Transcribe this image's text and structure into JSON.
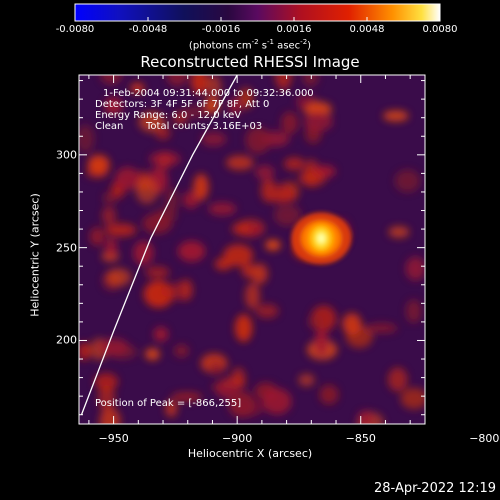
{
  "colorbar": {
    "ticks": [
      "-0.0080",
      "-0.0048",
      "-0.0016",
      "0.0016",
      "0.0048",
      "0.0080"
    ],
    "units_main": "(photons cm",
    "units_sup1": "-2",
    "units_mid": " s",
    "units_sup2": "-1",
    "units_mid2": " asec",
    "units_sup3": "-2",
    "units_end": ")",
    "colormap": "black-purple-red-orange-yellow-white"
  },
  "title": "Reconstructed RHESSI Image",
  "info": {
    "line1": "1-Feb-2004 09:31:44.000 to 09:32:36.000",
    "line2": "Detectors: 3F 4F 5F 6F 7F 8F, Att 0",
    "line3": "Energy Range: 6.0 - 12.0 keV",
    "line4_a": "Clean",
    "line4_b": "Total counts: 3.16E+03"
  },
  "peak_label": "Position of Peak = [-866,255]",
  "timestamp": "28-Apr-2022 12:19",
  "chart_data": {
    "type": "heatmap",
    "title": "Reconstructed RHESSI Image",
    "xlabel": "Heliocentric X (arcsec)",
    "ylabel": "Heliocentric Y (arcsec)",
    "xlim": [
      -964,
      -824
    ],
    "ylim": [
      155,
      343
    ],
    "x_ticks": [
      -950,
      -900,
      -850,
      -800
    ],
    "x_tick_labels": [
      "−950",
      "−900",
      "−850",
      "−800"
    ],
    "y_ticks": [
      200,
      250,
      300
    ],
    "y_tick_labels": [
      "200",
      "250",
      "300"
    ],
    "value_range": [
      -0.008,
      0.008
    ],
    "peak": {
      "x": -866,
      "y": 255
    },
    "limb_curve": [
      [
        -963,
        160
      ],
      [
        -950,
        205
      ],
      [
        -935,
        255
      ],
      [
        -918,
        300
      ],
      [
        -900,
        343
      ]
    ]
  }
}
